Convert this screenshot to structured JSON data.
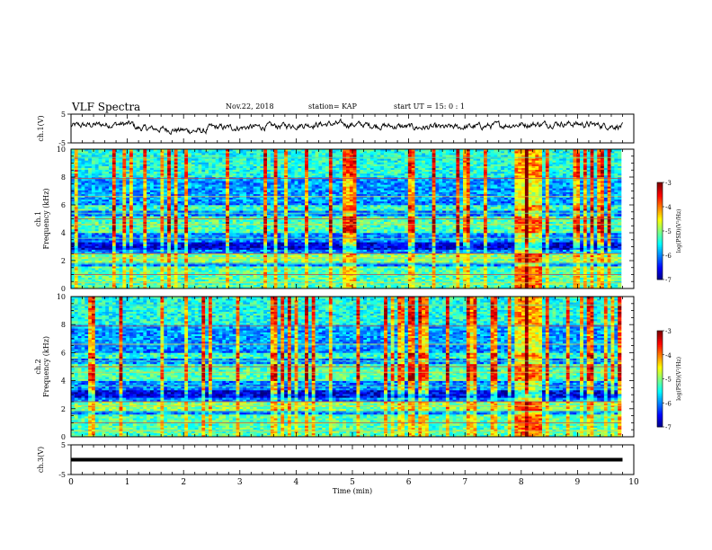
{
  "header": {
    "title": "VLF Spectra",
    "date": "Nov.22, 2018",
    "station": "station= KAP",
    "start": "start  UT =   15: 0  : 1"
  },
  "chart_data": [
    {
      "type": "line",
      "ylabel": "ch.1(V)",
      "ylim": [
        -5,
        5
      ],
      "y_ticks": [
        "5",
        "-5"
      ],
      "x_ticks": [
        "0",
        "1",
        "2",
        "3",
        "4",
        "5",
        "6",
        "7",
        "8",
        "9",
        "10"
      ],
      "xlim": [
        0,
        10
      ]
    },
    {
      "type": "heatmap",
      "ylabel": "ch.1\nFrequency  (kHz)",
      "ylim": [
        0,
        10
      ],
      "y_ticks": [
        "0",
        "2",
        "4",
        "6",
        "8",
        "10"
      ],
      "xlim": [
        0,
        10
      ],
      "colorbar": {
        "ticks": [
          "-3",
          "-4",
          "-5",
          "-6",
          "-7"
        ],
        "label": "log(PSD)(V²/Hz)",
        "range": [
          -7,
          -3
        ]
      }
    },
    {
      "type": "heatmap",
      "ylabel": "ch.2\nFrequency  (kHz)",
      "ylim": [
        0,
        10
      ],
      "y_ticks": [
        "0",
        "2",
        "4",
        "6",
        "8",
        "10"
      ],
      "xlim": [
        0,
        10
      ],
      "colorbar": {
        "ticks": [
          "-3",
          "-4",
          "-5",
          "-6",
          "-7"
        ],
        "label": "log(PSD)(V²/Hz)",
        "range": [
          -7,
          -3
        ]
      }
    },
    {
      "type": "line",
      "ylabel": "ch.3(V)",
      "ylim": [
        -5,
        5
      ],
      "y_ticks": [
        "5",
        "-5"
      ],
      "x_ticks": [
        "0",
        "1",
        "2",
        "3",
        "4",
        "5",
        "6",
        "7",
        "8",
        "9",
        "10"
      ],
      "xlim": [
        0,
        10
      ],
      "xlabel": "Time  (min)",
      "series_note": "constant",
      "values": [
        {
          "x": 0,
          "y": 0
        },
        {
          "x": 9.8,
          "y": 0
        }
      ]
    }
  ],
  "colors": {
    "axis": "#000000",
    "trace": "#000000"
  }
}
